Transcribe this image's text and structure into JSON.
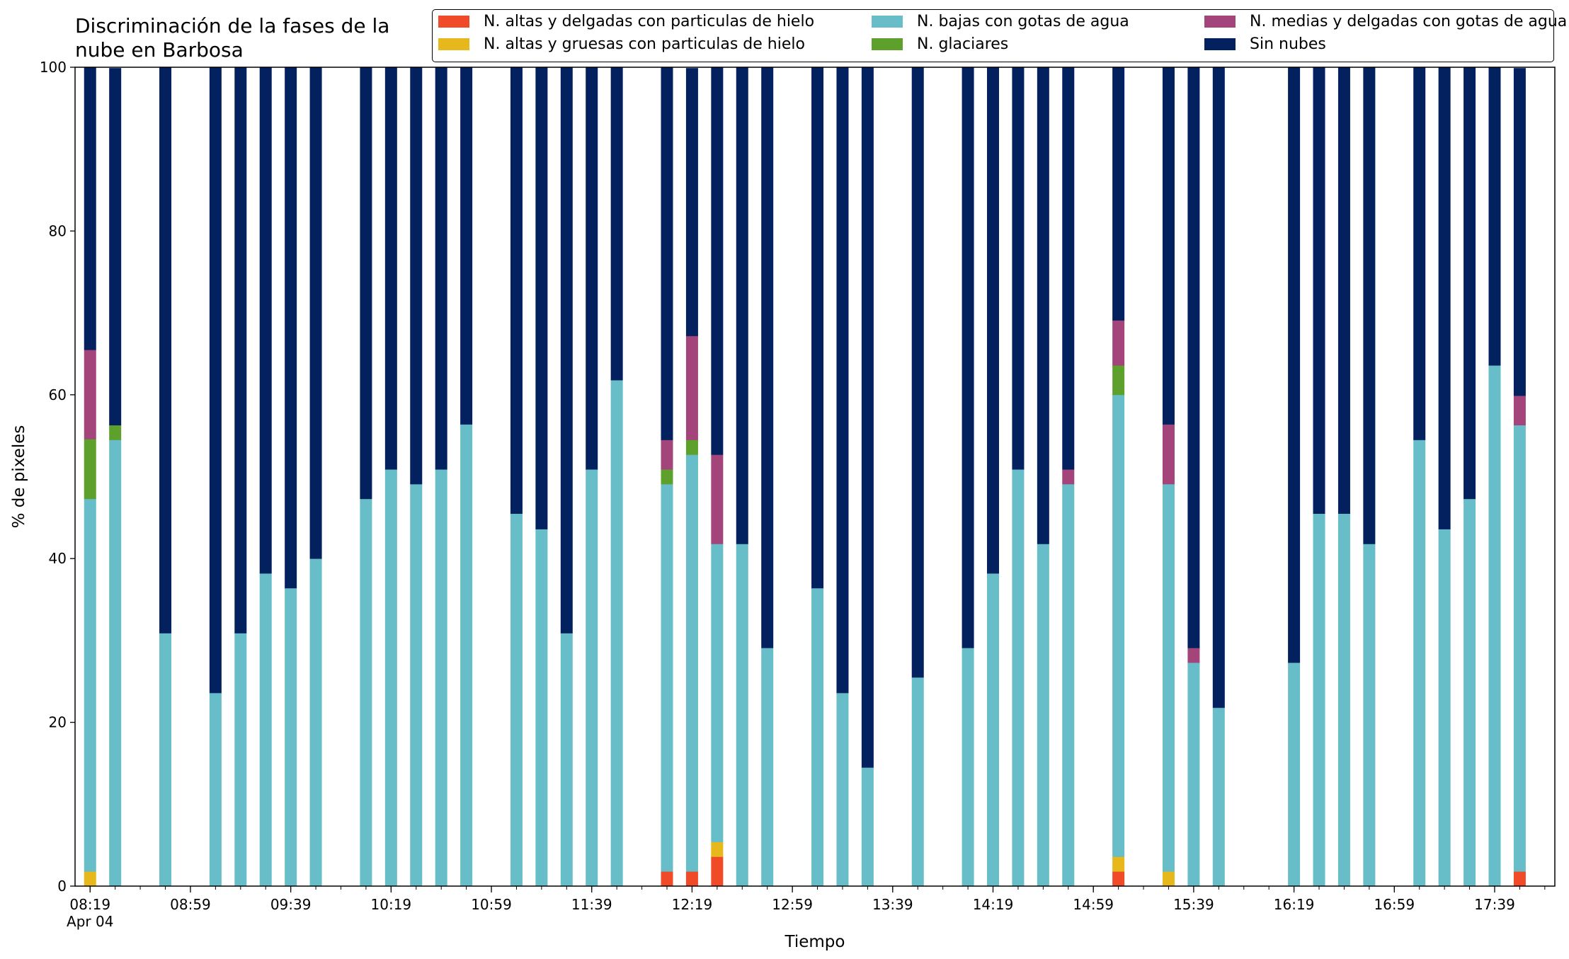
{
  "chart_data": {
    "type": "bar",
    "stacked": true,
    "title": "Discriminación de la fases de la\nnube en Barbosa",
    "xlabel": "Tiempo",
    "ylabel": "% de pixeles",
    "ylim": [
      0,
      100
    ],
    "yticks": [
      0,
      20,
      40,
      60,
      80,
      100
    ],
    "xlim": [
      "08:13",
      "18:03"
    ],
    "xticks": [
      "08:19",
      "08:59",
      "09:39",
      "10:19",
      "10:59",
      "11:39",
      "12:19",
      "12:59",
      "13:39",
      "14:19",
      "14:59",
      "15:39",
      "16:19",
      "16:59",
      "17:39"
    ],
    "x_date_label": "Apr 04",
    "grid": false,
    "legend_placement": "top-right",
    "categories": [
      "08:19",
      "08:29",
      "08:49",
      "09:09",
      "09:19",
      "09:29",
      "09:39",
      "09:49",
      "10:09",
      "10:19",
      "10:29",
      "10:39",
      "10:49",
      "11:09",
      "11:19",
      "11:29",
      "11:39",
      "11:49",
      "12:09",
      "12:19",
      "12:29",
      "12:39",
      "12:49",
      "13:09",
      "13:19",
      "13:29",
      "13:49",
      "14:09",
      "14:19",
      "14:29",
      "14:39",
      "14:49",
      "15:09",
      "15:29",
      "15:39",
      "15:49",
      "16:19",
      "16:29",
      "16:39",
      "16:49",
      "17:09",
      "17:19",
      "17:29",
      "17:39",
      "17:49"
    ],
    "series": [
      {
        "name": "N. altas y delgadas con particulas de hielo",
        "color": "#f04a29",
        "values": [
          0,
          0,
          0,
          0,
          0,
          0,
          0,
          0,
          0,
          0,
          0,
          0,
          0,
          0,
          0,
          0,
          0,
          0,
          1.8,
          1.8,
          3.6,
          0,
          0,
          0,
          0,
          0,
          0,
          0,
          0,
          0,
          0,
          0,
          1.8,
          0,
          0,
          0,
          0,
          0,
          0,
          0,
          0,
          0,
          0,
          0,
          1.8
        ]
      },
      {
        "name": "N. altas y gruesas con particulas de hielo",
        "color": "#e6b81c",
        "values": [
          1.8,
          0,
          0,
          0,
          0,
          0,
          0,
          0,
          0,
          0,
          0,
          0,
          0,
          0,
          0,
          0,
          0,
          0,
          0,
          0,
          1.8,
          0,
          0,
          0,
          0,
          0,
          0,
          0,
          0,
          0,
          0,
          0,
          1.8,
          1.8,
          0,
          0,
          0,
          0,
          0,
          0,
          0,
          0,
          0,
          0,
          0
        ]
      },
      {
        "name": "N. bajas con gotas de agua",
        "color": "#67bec9",
        "values": [
          45.5,
          54.5,
          30.9,
          23.6,
          30.9,
          38.2,
          36.4,
          40,
          47.3,
          50.9,
          49.1,
          50.9,
          56.4,
          45.5,
          43.6,
          30.9,
          50.9,
          61.8,
          47.3,
          50.9,
          36.4,
          41.8,
          29.1,
          36.4,
          23.6,
          14.5,
          25.5,
          29.1,
          38.2,
          50.9,
          41.8,
          49.1,
          56.4,
          47.3,
          27.3,
          21.8,
          27.3,
          45.5,
          45.5,
          41.8,
          54.5,
          43.6,
          47.3,
          63.6,
          54.5
        ]
      },
      {
        "name": "N. glaciares",
        "color": "#5da02c",
        "values": [
          7.3,
          1.8,
          0,
          0,
          0,
          0,
          0,
          0,
          0,
          0,
          0,
          0,
          0,
          0,
          0,
          0,
          0,
          0,
          1.8,
          1.8,
          0,
          0,
          0,
          0,
          0,
          0,
          0,
          0,
          0,
          0,
          0,
          0,
          3.6,
          0,
          0,
          0,
          0,
          0,
          0,
          0,
          0,
          0,
          0,
          0,
          0
        ]
      },
      {
        "name": "N. medias y delgadas con gotas de agua",
        "color": "#a3457a",
        "values": [
          10.9,
          0,
          0,
          0,
          0,
          0,
          0,
          0,
          0,
          0,
          0,
          0,
          0,
          0,
          0,
          0,
          0,
          0,
          3.6,
          12.7,
          10.9,
          0,
          0,
          0,
          0,
          0,
          0,
          0,
          0,
          0,
          0,
          1.8,
          5.5,
          7.3,
          1.8,
          0,
          0,
          0,
          0,
          0,
          0,
          0,
          0,
          0,
          3.6
        ]
      },
      {
        "name": "Sin nubes",
        "color": "#03215f",
        "values": [
          34.5,
          43.6,
          69.1,
          76.4,
          69.1,
          61.8,
          63.6,
          60,
          52.7,
          49.1,
          50.9,
          49.1,
          43.6,
          54.5,
          56.4,
          69.1,
          49.1,
          38.2,
          45.5,
          32.7,
          47.3,
          58.2,
          70.9,
          63.6,
          76.4,
          85.5,
          74.5,
          70.9,
          61.8,
          49.1,
          58.2,
          49.1,
          30.9,
          43.6,
          70.9,
          78.2,
          72.7,
          54.5,
          54.5,
          58.2,
          45.5,
          56.4,
          52.7,
          36.4,
          40
        ]
      }
    ]
  }
}
